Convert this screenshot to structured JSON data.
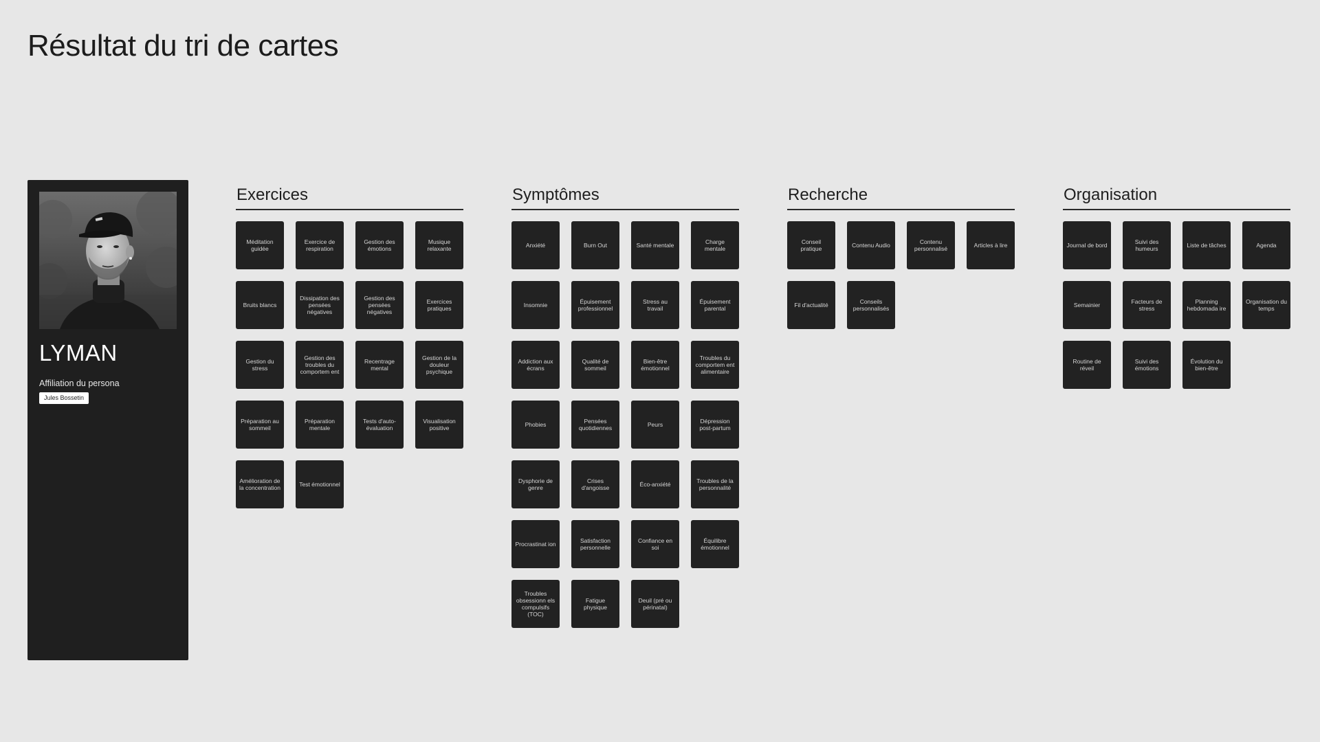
{
  "page": {
    "title": "Résultat du tri de cartes"
  },
  "persona": {
    "name": "LYMAN",
    "affiliation_label": "Affiliation du persona",
    "affiliation_value": "Jules Bossetin"
  },
  "categories": [
    {
      "title": "Exercices",
      "cards": [
        "Méditation guidée",
        "Exercice de respiration",
        "Gestion des émotions",
        "Musique relaxante",
        "Bruits blancs",
        "Dissipation des pensées négatives",
        "Gestion des pensées négatives",
        "Exercices pratiques",
        "Gestion du stress",
        "Gestion des troubles du comportem ent",
        "Recentrage mental",
        "Gestion de la douleur psychique",
        "Préparation au sommeil",
        "Préparation mentale",
        "Tests d'auto-évaluation",
        "Visualisation positive",
        "Amélioration de la concentration",
        "Test émotionnel"
      ]
    },
    {
      "title": "Symptômes",
      "cards": [
        "Anxiété",
        "Burn Out",
        "Santé mentale",
        "Charge mentale",
        "Insomnie",
        "Épuisement professionnel",
        "Stress au travail",
        "Épuisement parental",
        "Addiction aux écrans",
        "Qualité de sommeil",
        "Bien-être émotionnel",
        "Troubles du comportem ent alimentaire",
        "Phobies",
        "Pensées quotidiennes",
        "Peurs",
        "Dépression post-partum",
        "Dysphorie de genre",
        "Crises d'angoisse",
        "Éco-anxiété",
        "Troubles de la personnalité",
        "Procrastinat ion",
        "Satisfaction personnelle",
        "Confiance en soi",
        "Équilibre émotionnel",
        "Troubles obsessionn els compulsifs (TOC)",
        "Fatigue physique",
        "Deuil (pré ou périnatal)"
      ]
    },
    {
      "title": "Recherche",
      "cards": [
        "Conseil pratique",
        "Contenu Audio",
        "Contenu personnalisé",
        "Articles à lire",
        "Fil d'actualité",
        "Conseils personnalisés"
      ]
    },
    {
      "title": "Organisation",
      "cards": [
        "Journal de bord",
        "Suivi des humeurs",
        "Liste de tâches",
        "Agenda",
        "Semainier",
        "Facteurs de stress",
        "Planning hebdomada ire",
        "Organisation du temps",
        "Routine de réveil",
        "Suivi des émotions",
        "Évolution du bien-être"
      ]
    }
  ]
}
